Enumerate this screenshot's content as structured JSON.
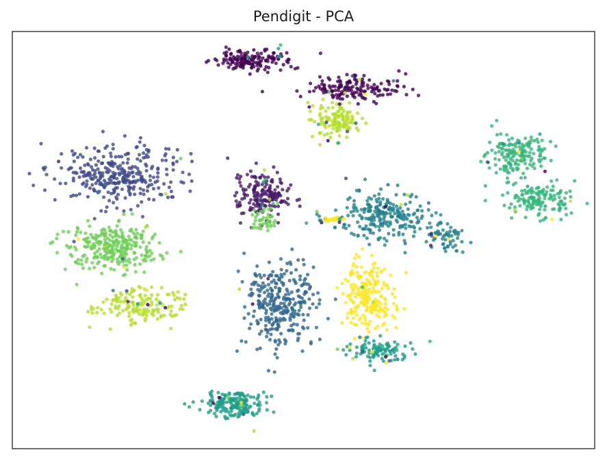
{
  "chart_data": {
    "type": "scatter",
    "title": "Pendigit - PCA",
    "xlabel": "",
    "ylabel": "",
    "xlim": [
      0,
      100
    ],
    "ylim": [
      0,
      100
    ],
    "grid": false,
    "axis_ticks": false,
    "legend": "none",
    "colormap": "viridis",
    "point_opacity": 0.8,
    "clusters": [
      {
        "class": 0,
        "color": "#440154",
        "center": [
          41,
          94
        ],
        "spread": [
          4.5,
          1.8
        ],
        "count": 150
      },
      {
        "class": 0,
        "color": "#440154",
        "center": [
          59,
          87
        ],
        "spread": [
          5.5,
          2.2
        ],
        "count": 150
      },
      {
        "class": 0,
        "color": "#481a6c",
        "center": [
          43,
          61
        ],
        "spread": [
          2.8,
          3.8
        ],
        "count": 180
      },
      {
        "class": 1,
        "color": "#3e4a89",
        "center": [
          18,
          66
        ],
        "spread": [
          7.5,
          5.0
        ],
        "count": 320
      },
      {
        "class": 2,
        "color": "#31678e",
        "center": [
          46,
          34
        ],
        "spread": [
          3.8,
          7.5
        ],
        "count": 300
      },
      {
        "class": 3,
        "color": "#26828e",
        "center": [
          64,
          56
        ],
        "spread": [
          5.5,
          4.0
        ],
        "count": 240
      },
      {
        "class": 3,
        "color": "#26828e",
        "center": [
          75,
          51
        ],
        "spread": [
          2.3,
          2.0
        ],
        "count": 60
      },
      {
        "class": 4,
        "color": "#1f9e89",
        "center": [
          38,
          10
        ],
        "spread": [
          4.2,
          2.2
        ],
        "count": 170
      },
      {
        "class": 4,
        "color": "#1f9e89",
        "center": [
          63,
          23
        ],
        "spread": [
          3.2,
          1.8
        ],
        "count": 90
      },
      {
        "class": 5,
        "color": "#35b779",
        "center": [
          87,
          71
        ],
        "spread": [
          3.8,
          3.5
        ],
        "count": 160
      },
      {
        "class": 5,
        "color": "#35b779",
        "center": [
          91,
          60
        ],
        "spread": [
          4.2,
          3.0
        ],
        "count": 140
      },
      {
        "class": 6,
        "color": "#6ece58",
        "center": [
          17,
          48
        ],
        "spread": [
          5.5,
          3.8
        ],
        "count": 280
      },
      {
        "class": 6,
        "color": "#6ece58",
        "center": [
          43,
          55
        ],
        "spread": [
          1.5,
          1.8
        ],
        "count": 40
      },
      {
        "class": 7,
        "color": "#b5de2b",
        "center": [
          56,
          79
        ],
        "spread": [
          2.6,
          3.0
        ],
        "count": 120
      },
      {
        "class": 7,
        "color": "#b5de2b",
        "center": [
          22,
          34
        ],
        "spread": [
          5.0,
          3.0
        ],
        "count": 150
      },
      {
        "class": 8,
        "color": "#fde725",
        "center": [
          61,
          36
        ],
        "spread": [
          3.0,
          6.0
        ],
        "count": 230
      },
      {
        "class": 8,
        "color": "#fde725",
        "center": [
          55,
          55
        ],
        "spread": [
          1.8,
          0.5
        ],
        "count": 18
      }
    ],
    "noise_points": 120
  }
}
